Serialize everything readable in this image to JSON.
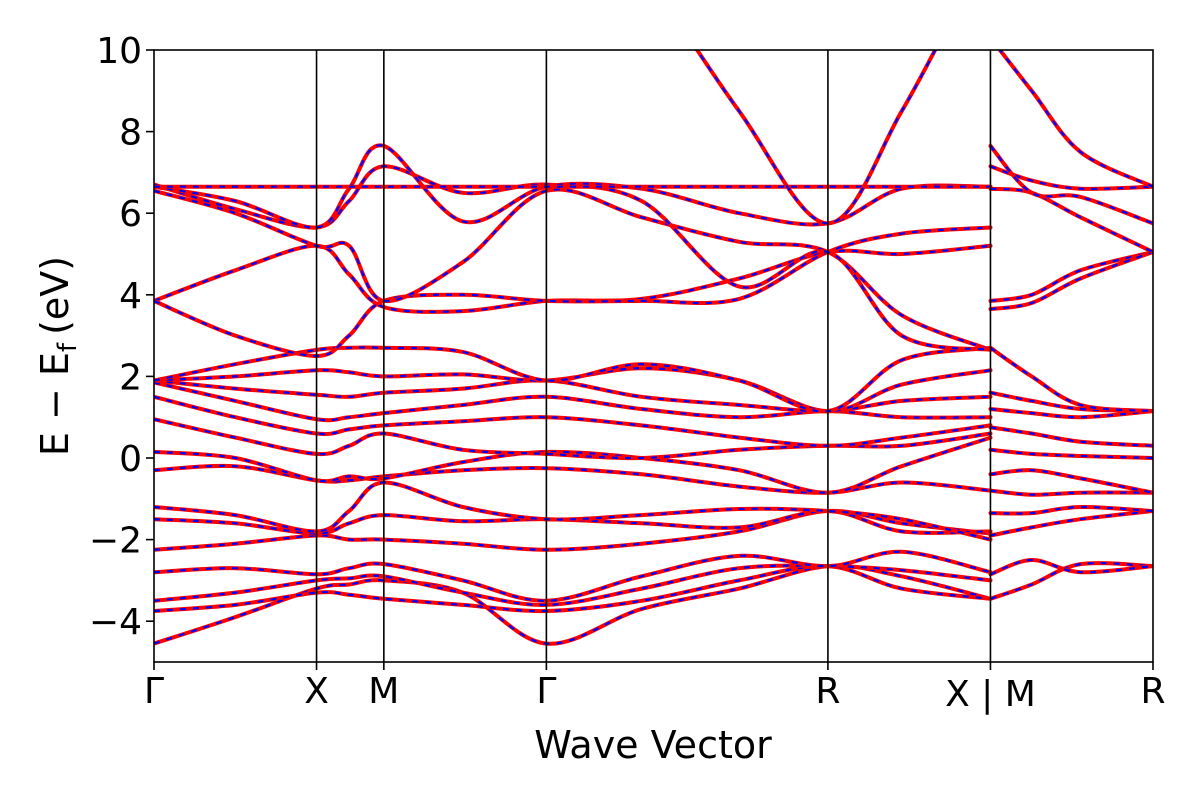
{
  "chart_data": {
    "type": "line",
    "title": "",
    "xlabel": "Wave Vector",
    "ylabel_main": "E − E",
    "ylabel_sub": "f",
    "ylabel_unit": "(eV)",
    "ylim": [
      -5,
      10
    ],
    "yticks": [
      -4,
      -2,
      0,
      2,
      4,
      6,
      8,
      10
    ],
    "ytick_labels": [
      "−4",
      "−2",
      "0",
      "2",
      "4",
      "6",
      "8",
      "10"
    ],
    "kpoint_labels": [
      "Γ",
      "X",
      "M",
      "Γ",
      "R",
      "X | M",
      "R"
    ],
    "kpoint_positions": [
      0,
      1,
      1.414,
      2.414,
      4.146,
      5.146,
      5.146,
      6.146
    ],
    "grid": false,
    "series": [
      {
        "color": "#ff0000",
        "style": "solid"
      },
      {
        "color": "#0000ff",
        "style": "dashed"
      }
    ],
    "bands": [
      {
        "x": [
          0,
          0.5,
          1,
          1.2,
          1.414,
          1.9,
          2.414,
          3.0,
          3.6,
          4.146,
          4.6,
          5.146
        ],
        "y": [
          -4.55,
          -3.9,
          -3.2,
          -3.1,
          -3.0,
          -3.3,
          -4.55,
          -3.7,
          -3.2,
          -2.65,
          -2.9,
          -3.45
        ]
      },
      {
        "x": [
          0,
          0.5,
          1,
          1.2,
          1.414,
          1.9,
          2.414,
          3.0,
          3.6,
          4.146,
          4.6,
          5.146
        ],
        "y": [
          -3.75,
          -3.6,
          -3.3,
          -3.35,
          -3.45,
          -3.6,
          -3.75,
          -3.5,
          -3.0,
          -2.65,
          -3.2,
          -3.45
        ]
      },
      {
        "x": [
          0,
          0.5,
          1,
          1.2,
          1.414,
          1.9,
          2.414,
          3.0,
          3.6,
          4.146,
          4.6,
          5.146
        ],
        "y": [
          -3.5,
          -3.3,
          -3.0,
          -2.95,
          -2.9,
          -3.3,
          -3.6,
          -3.2,
          -2.7,
          -2.65,
          -2.75,
          -3.0
        ]
      },
      {
        "x": [
          0,
          0.5,
          1,
          1.2,
          1.414,
          1.9,
          2.414,
          3.0,
          3.6,
          4.146,
          4.6,
          5.146
        ],
        "y": [
          -2.8,
          -2.7,
          -2.85,
          -2.7,
          -2.6,
          -3.0,
          -3.5,
          -2.9,
          -2.4,
          -2.65,
          -2.3,
          -2.8
        ]
      },
      {
        "x": [
          0,
          0.5,
          1,
          1.2,
          1.414,
          1.9,
          2.414,
          3.0,
          3.6,
          4.146,
          4.6,
          5.146
        ],
        "y": [
          -2.25,
          -2.1,
          -1.9,
          -2.0,
          -2.0,
          -2.1,
          -2.25,
          -2.1,
          -1.8,
          -1.3,
          -1.6,
          -1.85
        ]
      },
      {
        "x": [
          0,
          0.5,
          1,
          1.2,
          1.414,
          1.9,
          2.414,
          3.0,
          3.6,
          4.146,
          4.6,
          5.146
        ],
        "y": [
          -1.5,
          -1.6,
          -1.85,
          -1.6,
          -1.4,
          -1.55,
          -1.5,
          -1.6,
          -1.7,
          -1.3,
          -1.8,
          -1.8
        ]
      },
      {
        "x": [
          0,
          0.5,
          1,
          1.2,
          1.414,
          1.9,
          2.414,
          3.0,
          3.6,
          4.146,
          4.6,
          5.146
        ],
        "y": [
          -1.2,
          -1.4,
          -1.8,
          -1.3,
          -0.6,
          -1.2,
          -1.5,
          -1.4,
          -1.25,
          -1.3,
          -1.5,
          -2.0
        ]
      },
      {
        "x": [
          0,
          0.5,
          1,
          1.2,
          1.414,
          1.9,
          2.414,
          3.0,
          3.6,
          4.146,
          4.6,
          5.146
        ],
        "y": [
          -0.3,
          -0.2,
          -0.55,
          -0.55,
          -0.45,
          -0.3,
          -0.25,
          -0.4,
          -0.7,
          -0.85,
          -0.6,
          -0.8
        ]
      },
      {
        "x": [
          0,
          0.5,
          1,
          1.2,
          1.414,
          1.9,
          2.414,
          3.0,
          3.6,
          4.146,
          4.6,
          5.146
        ],
        "y": [
          0.15,
          0.0,
          -0.55,
          -0.45,
          -0.5,
          -0.1,
          0.15,
          0.0,
          -0.3,
          -0.85,
          -0.2,
          0.5
        ]
      },
      {
        "x": [
          0,
          0.5,
          1,
          1.2,
          1.414,
          1.9,
          2.414,
          3.0,
          3.6,
          4.146,
          4.6,
          5.146
        ],
        "y": [
          0.95,
          0.5,
          0.1,
          0.3,
          0.6,
          0.2,
          0.1,
          0.0,
          0.2,
          0.3,
          0.3,
          0.6
        ]
      },
      {
        "x": [
          0,
          0.5,
          1,
          1.2,
          1.414,
          1.9,
          2.414,
          3.0,
          3.6,
          4.146,
          4.6,
          5.146
        ],
        "y": [
          1.5,
          1.0,
          0.6,
          0.7,
          0.8,
          0.9,
          1.0,
          0.8,
          0.5,
          0.3,
          0.5,
          0.8
        ]
      },
      {
        "x": [
          0,
          0.5,
          1,
          1.2,
          1.414,
          1.9,
          2.414,
          3.0,
          3.6,
          4.146,
          4.6,
          5.146
        ],
        "y": [
          1.85,
          1.4,
          0.95,
          1.0,
          1.1,
          1.3,
          1.5,
          1.2,
          1.0,
          1.15,
          1.0,
          1.0
        ]
      },
      {
        "x": [
          0,
          0.5,
          1,
          1.2,
          1.414,
          1.9,
          2.414,
          3.0,
          3.6,
          4.146,
          4.6,
          5.146
        ],
        "y": [
          1.9,
          1.7,
          1.55,
          1.5,
          1.6,
          1.7,
          1.9,
          1.5,
          1.3,
          1.15,
          1.4,
          1.5
        ]
      },
      {
        "x": [
          0,
          0.5,
          1,
          1.2,
          1.414,
          1.9,
          2.414,
          3.0,
          3.6,
          4.146,
          4.6,
          5.146
        ],
        "y": [
          1.9,
          2.0,
          2.15,
          2.1,
          2.0,
          2.05,
          1.9,
          2.2,
          1.9,
          1.15,
          1.8,
          2.15
        ]
      },
      {
        "x": [
          0,
          0.5,
          1,
          1.2,
          1.414,
          1.9,
          2.414,
          3.0,
          3.6,
          4.146,
          4.6,
          5.146
        ],
        "y": [
          1.9,
          2.3,
          2.65,
          2.7,
          2.7,
          2.6,
          1.9,
          2.3,
          1.9,
          1.15,
          2.4,
          2.7
        ]
      },
      {
        "x": [
          0,
          0.5,
          1,
          1.2,
          1.414,
          1.9,
          2.414,
          3.0,
          3.6,
          4.146,
          4.6,
          5.146
        ],
        "y": [
          3.85,
          4.6,
          5.2,
          4.5,
          3.7,
          3.6,
          3.85,
          3.9,
          4.4,
          5.05,
          5.0,
          5.2
        ]
      },
      {
        "x": [
          0,
          0.5,
          1,
          1.2,
          1.414,
          1.9,
          2.414,
          3.0,
          3.6,
          4.146,
          4.6,
          5.146
        ],
        "y": [
          3.85,
          3.0,
          2.5,
          3.0,
          3.85,
          4.0,
          3.85,
          3.85,
          3.9,
          5.05,
          5.5,
          5.65
        ]
      },
      {
        "x": [
          0,
          0.5,
          1,
          1.2,
          1.414,
          1.9,
          2.414,
          3.0,
          3.6,
          4.146,
          4.6,
          5.146
        ],
        "y": [
          6.55,
          6.0,
          5.2,
          5.2,
          3.85,
          4.8,
          6.55,
          5.9,
          5.3,
          5.05,
          3.5,
          2.65
        ]
      },
      {
        "x": [
          0,
          0.5,
          1,
          1.2,
          1.414,
          1.9,
          2.414,
          3.0,
          3.6,
          4.146,
          4.6,
          5.146
        ],
        "y": [
          6.7,
          6.1,
          5.65,
          6.3,
          7.15,
          6.5,
          6.7,
          6.3,
          4.2,
          5.05,
          3.0,
          2.65
        ]
      },
      {
        "x": [
          0,
          0.5,
          1,
          1.2,
          1.414,
          1.9,
          2.414,
          3.0,
          3.6,
          4.146,
          4.6,
          5.146
        ],
        "y": [
          6.65,
          6.3,
          5.65,
          6.6,
          7.65,
          5.8,
          6.65,
          6.6,
          6.0,
          5.75,
          6.6,
          6.65
        ]
      },
      {
        "x": [
          0,
          1,
          1.414,
          2.414,
          4.146,
          5.146
        ],
        "y": [
          6.65,
          6.65,
          6.65,
          6.65,
          6.65,
          6.65
        ]
      },
      {
        "x": [
          2.414,
          3.0,
          3.6,
          4.146,
          4.6,
          5.0
        ],
        "y": [
          15,
          12,
          8.5,
          5.75,
          8.5,
          11.5
        ]
      },
      {
        "x": [
          5.146,
          5.4,
          5.7,
          6.146
        ],
        "y": [
          -3.45,
          -3.1,
          -2.6,
          -2.65
        ]
      },
      {
        "x": [
          5.146,
          5.4,
          5.7,
          6.146
        ],
        "y": [
          -2.85,
          -2.5,
          -2.8,
          -2.65
        ]
      },
      {
        "x": [
          5.146,
          5.4,
          5.7,
          6.146
        ],
        "y": [
          -1.9,
          -1.7,
          -1.5,
          -1.3
        ]
      },
      {
        "x": [
          5.146,
          5.4,
          5.7,
          6.146
        ],
        "y": [
          -1.35,
          -1.35,
          -1.2,
          -1.3
        ]
      },
      {
        "x": [
          5.146,
          5.4,
          5.7,
          6.146
        ],
        "y": [
          -0.8,
          -0.9,
          -0.85,
          -0.85
        ]
      },
      {
        "x": [
          5.146,
          5.4,
          5.7,
          6.146
        ],
        "y": [
          -0.4,
          -0.3,
          -0.5,
          -0.85
        ]
      },
      {
        "x": [
          5.146,
          5.4,
          5.7,
          6.146
        ],
        "y": [
          0.2,
          0.1,
          0.05,
          0.0
        ]
      },
      {
        "x": [
          5.146,
          5.4,
          5.7,
          6.146
        ],
        "y": [
          0.75,
          0.6,
          0.4,
          0.3
        ]
      },
      {
        "x": [
          5.146,
          5.4,
          5.7,
          6.146
        ],
        "y": [
          1.2,
          1.1,
          1.0,
          1.15
        ]
      },
      {
        "x": [
          5.146,
          5.4,
          5.7,
          6.146
        ],
        "y": [
          1.6,
          1.4,
          1.2,
          1.15
        ]
      },
      {
        "x": [
          5.146,
          5.4,
          5.7,
          6.146
        ],
        "y": [
          2.7,
          2.0,
          1.3,
          1.15
        ]
      },
      {
        "x": [
          5.146,
          5.4,
          5.7,
          6.146
        ],
        "y": [
          3.85,
          4.0,
          4.6,
          5.05
        ]
      },
      {
        "x": [
          5.146,
          5.4,
          5.7,
          6.146
        ],
        "y": [
          3.65,
          3.8,
          4.4,
          5.05
        ]
      },
      {
        "x": [
          5.146,
          5.4,
          5.7,
          6.146
        ],
        "y": [
          6.6,
          6.5,
          5.9,
          5.05
        ]
      },
      {
        "x": [
          5.146,
          5.4,
          5.7,
          6.146
        ],
        "y": [
          7.15,
          6.8,
          6.6,
          6.65
        ]
      },
      {
        "x": [
          5.146,
          5.4,
          5.7,
          6.146
        ],
        "y": [
          7.65,
          6.5,
          6.4,
          5.75
        ]
      },
      {
        "x": [
          5.146,
          5.4,
          5.7,
          6.146
        ],
        "y": [
          10.3,
          9.0,
          7.5,
          6.65
        ]
      }
    ]
  }
}
